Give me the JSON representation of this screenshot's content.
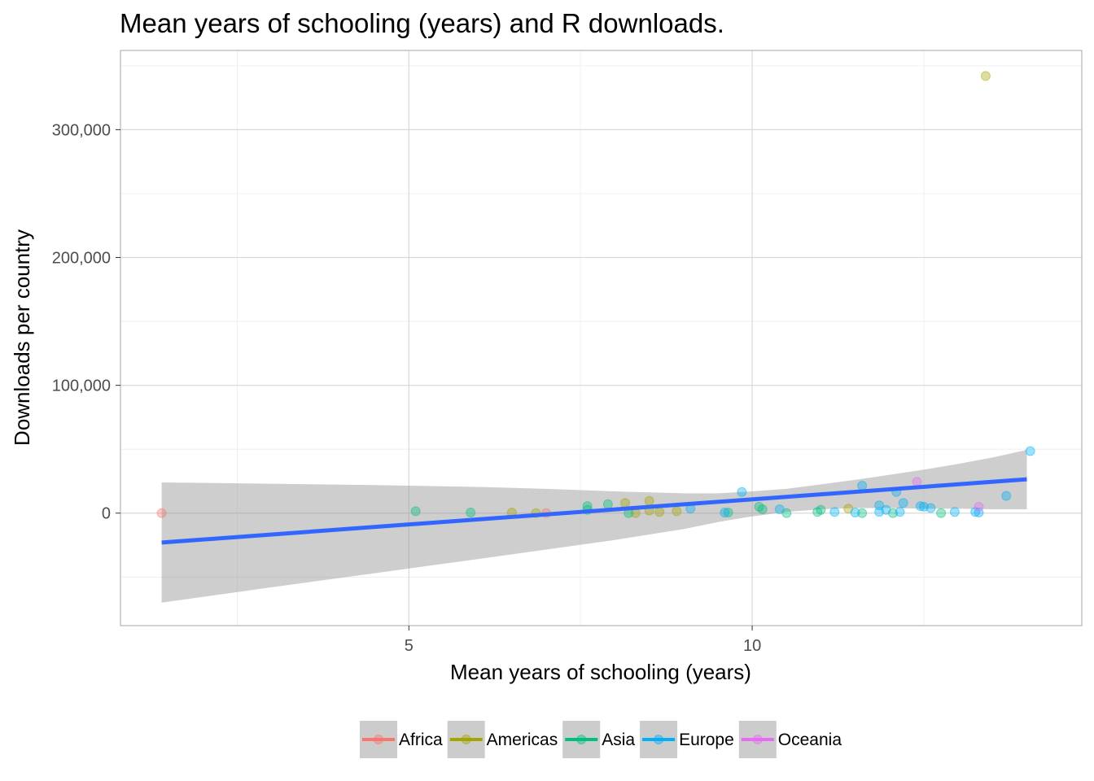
{
  "chart_data": {
    "type": "scatter",
    "title": "Mean years of schooling (years) and R downloads.",
    "xlabel": "Mean years of schooling (years)",
    "ylabel": "Downloads per country",
    "xlim": [
      0.8,
      14.8
    ],
    "ylim": [
      -88000,
      362000
    ],
    "x_ticks": [
      5,
      10
    ],
    "x_tick_labels": [
      "5",
      "10"
    ],
    "y_ticks": [
      0,
      100000,
      200000,
      300000
    ],
    "y_tick_labels": [
      "0",
      "100,000",
      "200,000",
      "300,000"
    ],
    "grid": true,
    "legend_position": "bottom",
    "series": [
      {
        "name": "Africa",
        "color": "#F8766D",
        "points": [
          [
            1.4,
            0
          ],
          [
            7.0,
            0
          ]
        ]
      },
      {
        "name": "Americas",
        "color": "#A3A500",
        "points": [
          [
            6.5,
            500
          ],
          [
            6.85,
            0
          ],
          [
            8.15,
            8000
          ],
          [
            8.3,
            0
          ],
          [
            8.5,
            9500
          ],
          [
            8.5,
            2000
          ],
          [
            8.65,
            1000
          ],
          [
            8.9,
            1500
          ],
          [
            11.4,
            3500
          ],
          [
            13.4,
            342000
          ]
        ]
      },
      {
        "name": "Asia",
        "color": "#00BF7D",
        "points": [
          [
            5.1,
            1500
          ],
          [
            5.9,
            500
          ],
          [
            7.6,
            5500
          ],
          [
            7.6,
            2500
          ],
          [
            7.9,
            7000
          ],
          [
            8.2,
            0
          ],
          [
            9.65,
            500
          ],
          [
            10.1,
            5000
          ],
          [
            10.15,
            3000
          ],
          [
            10.5,
            0
          ],
          [
            10.95,
            1000
          ],
          [
            11.0,
            2500
          ],
          [
            11.6,
            0
          ],
          [
            12.05,
            0
          ],
          [
            12.75,
            0
          ]
        ]
      },
      {
        "name": "Europe",
        "color": "#00B0F6",
        "points": [
          [
            9.1,
            3500
          ],
          [
            9.6,
            500
          ],
          [
            9.85,
            16500
          ],
          [
            10.4,
            3000
          ],
          [
            11.2,
            1000
          ],
          [
            11.5,
            500
          ],
          [
            11.6,
            21500
          ],
          [
            11.85,
            6000
          ],
          [
            11.85,
            1000
          ],
          [
            11.95,
            2500
          ],
          [
            12.1,
            16500
          ],
          [
            12.15,
            1000
          ],
          [
            12.2,
            8000
          ],
          [
            12.45,
            5500
          ],
          [
            12.5,
            5000
          ],
          [
            12.6,
            4000
          ],
          [
            12.95,
            1000
          ],
          [
            13.25,
            1000
          ],
          [
            13.3,
            500
          ],
          [
            13.7,
            13500
          ],
          [
            14.05,
            48500
          ]
        ]
      },
      {
        "name": "Oceania",
        "color": "#E76BF3",
        "points": [
          [
            12.4,
            24500
          ],
          [
            13.3,
            5000
          ]
        ]
      }
    ],
    "fit_line": {
      "x": [
        1.4,
        14.0
      ],
      "y": [
        -23000,
        26500
      ],
      "color": "#3366FF"
    },
    "confidence_band": {
      "x": [
        1.4,
        3.0,
        4.5,
        6.0,
        7.0,
        8.0,
        9.0,
        9.5,
        10.0,
        10.5,
        11.0,
        11.5,
        12.0,
        12.5,
        13.0,
        13.5,
        14.0
      ],
      "upper": [
        24000,
        23000,
        22000,
        20500,
        19000,
        17000,
        15500,
        15500,
        17000,
        19000,
        22500,
        26000,
        30000,
        34000,
        38500,
        43500,
        49500
      ],
      "lower": [
        -70000,
        -58000,
        -47000,
        -36000,
        -28500,
        -21000,
        -12500,
        -7000,
        -2500,
        1000,
        3000,
        4000,
        4000,
        3500,
        3500,
        3000,
        3000
      ],
      "color": "#999999"
    }
  },
  "legend": {
    "items": [
      {
        "label": "Africa",
        "color": "#F8766D"
      },
      {
        "label": "Americas",
        "color": "#A3A500"
      },
      {
        "label": "Asia",
        "color": "#00BF7D"
      },
      {
        "label": "Europe",
        "color": "#00B0F6"
      },
      {
        "label": "Oceania",
        "color": "#E76BF3"
      }
    ]
  }
}
